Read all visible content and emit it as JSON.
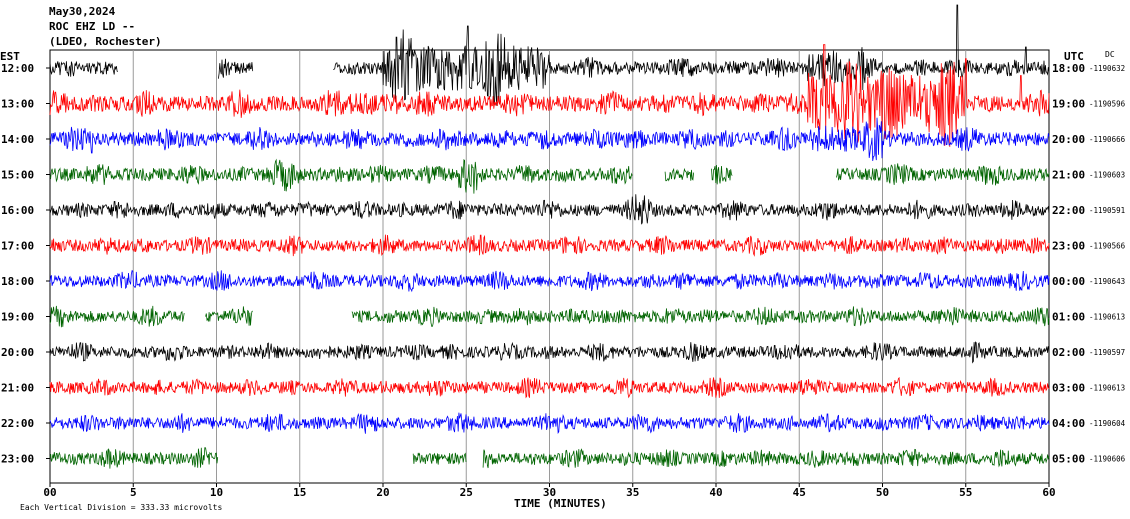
{
  "header": {
    "date": "May30,2024",
    "station": "ROC EHZ LD --",
    "network": "(LDEO, Rochester)"
  },
  "left_zone_label": "EST",
  "right_zone_label": "UTC",
  "dc_label": "DC",
  "footer": {
    "x_axis_title": "TIME (MINUTES)",
    "scale_note": "Each Vertical Division =  333.33 microvolts"
  },
  "chart_data": {
    "type": "line",
    "title": "",
    "xlabel": "TIME (MINUTES)",
    "ylabel": "",
    "xlim": [
      0,
      60
    ],
    "x_ticks": [
      "00",
      "5",
      "10",
      "15",
      "20",
      "25",
      "30",
      "35",
      "40",
      "45",
      "50",
      "55",
      "60"
    ],
    "grid": true,
    "trace_colors": [
      "#000000",
      "#ff0000",
      "#0000ff",
      "#006400"
    ],
    "rows": [
      {
        "est": "12:00",
        "utc": "18:00",
        "dc": "-1190632",
        "color": "#000000",
        "gaps": [
          [
            4.1,
            10.1
          ],
          [
            12.2,
            17.0
          ]
        ],
        "bursts": [
          [
            20,
            30,
            2.6
          ],
          [
            45.5,
            49,
            1.4
          ]
        ],
        "spikes": [
          [
            20.8,
            -2.2
          ],
          [
            25.1,
            -3.0
          ],
          [
            54.5,
            -4.5
          ],
          [
            58.6,
            -1.5
          ]
        ],
        "amp": 0.45
      },
      {
        "est": "13:00",
        "utc": "19:00",
        "dc": "-1190596",
        "color": "#ff0000",
        "gaps": [],
        "bursts": [
          [
            45.5,
            55,
            2.8
          ],
          [
            18,
            21,
            0.4
          ]
        ],
        "spikes": [
          [
            46.5,
            -4.2
          ],
          [
            55.0,
            -3.2
          ],
          [
            58.3,
            -2.0
          ]
        ],
        "amp": 0.55
      },
      {
        "est": "14:00",
        "utc": "20:00",
        "dc": "-1190666",
        "color": "#0000ff",
        "gaps": [],
        "bursts": [
          [
            45.5,
            50,
            0.8
          ]
        ],
        "spikes": [
          [
            2.5,
            1.0
          ]
        ],
        "amp": 0.5
      },
      {
        "est": "15:00",
        "utc": "21:00",
        "dc": "-1190603",
        "color": "#006400",
        "gaps": [
          [
            35.0,
            36.9
          ],
          [
            38.7,
            39.7
          ],
          [
            41.0,
            47.2
          ]
        ],
        "bursts": [
          [
            24.5,
            26,
            1.2
          ],
          [
            13,
            15,
            0.6
          ]
        ],
        "spikes": [],
        "amp": 0.45
      },
      {
        "est": "16:00",
        "utc": "22:00",
        "dc": "-1190591",
        "color": "#000000",
        "gaps": [],
        "bursts": [
          [
            34.5,
            36,
            0.6
          ]
        ],
        "spikes": [],
        "amp": 0.42
      },
      {
        "est": "17:00",
        "utc": "23:00",
        "dc": "-1190566",
        "color": "#ff0000",
        "gaps": [],
        "bursts": [],
        "spikes": [],
        "amp": 0.42
      },
      {
        "est": "18:00",
        "utc": "00:00",
        "dc": "-1190643",
        "color": "#0000ff",
        "gaps": [],
        "bursts": [],
        "spikes": [],
        "amp": 0.42
      },
      {
        "est": "19:00",
        "utc": "01:00",
        "dc": "-1190613",
        "color": "#006400",
        "gaps": [
          [
            8.1,
            9.3
          ],
          [
            12.2,
            18.1
          ]
        ],
        "bursts": [],
        "spikes": [],
        "amp": 0.42
      },
      {
        "est": "20:00",
        "utc": "02:00",
        "dc": "-1190597",
        "color": "#000000",
        "gaps": [],
        "bursts": [],
        "spikes": [],
        "amp": 0.4
      },
      {
        "est": "21:00",
        "utc": "03:00",
        "dc": "-1190613",
        "color": "#ff0000",
        "gaps": [],
        "bursts": [],
        "spikes": [],
        "amp": 0.4
      },
      {
        "est": "22:00",
        "utc": "04:00",
        "dc": "-1190604",
        "color": "#0000ff",
        "gaps": [],
        "bursts": [],
        "spikes": [],
        "amp": 0.42
      },
      {
        "est": "23:00",
        "utc": "05:00",
        "dc": "-1190606",
        "color": "#006400",
        "gaps": [
          [
            10.1,
            21.8
          ],
          [
            25.0,
            26.0
          ]
        ],
        "bursts": [],
        "spikes": [],
        "amp": 0.42
      }
    ]
  }
}
